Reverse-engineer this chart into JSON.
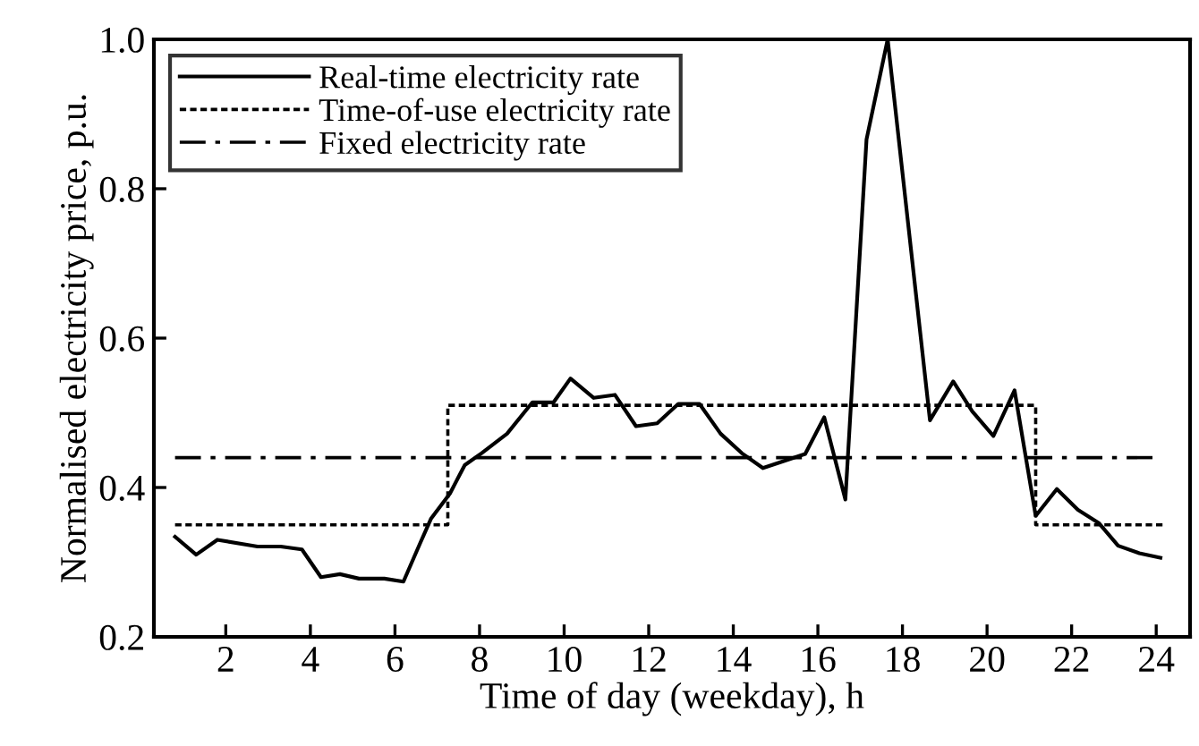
{
  "chart_data": {
    "type": "line",
    "xlabel": "Time of day (weekday), h",
    "ylabel": "Normalised electricity price, p.u.",
    "xlim": [
      0.3,
      24.8
    ],
    "ylim": [
      0.2,
      1.0
    ],
    "xticks": [
      2,
      4,
      6,
      8,
      10,
      12,
      14,
      16,
      18,
      20,
      22,
      24
    ],
    "yticks": [
      0.2,
      0.4,
      0.6,
      0.8,
      {
        "value": 1,
        "label": "1.0"
      }
    ],
    "grid": false,
    "legend": "top left",
    "series": [
      {
        "name": "Real-time electricity rate",
        "color": "#000000",
        "line_style": "solid",
        "x": [
          0.8,
          1.3,
          1.8,
          2.75,
          3.3,
          3.8,
          4.25,
          4.7,
          5.15,
          5.75,
          6.2,
          6.6,
          6.85,
          7.3,
          7.65,
          8.05,
          8.65,
          9.25,
          9.75,
          10.15,
          10.7,
          11.2,
          11.7,
          12.2,
          12.7,
          13.2,
          13.7,
          14.2,
          14.7,
          15.7,
          16.15,
          16.65,
          17.15,
          17.65,
          18.65,
          19.2,
          19.65,
          20.15,
          20.65,
          21.15,
          21.65,
          22.15,
          22.65,
          23.1,
          23.6,
          24.1
        ],
        "values": [
          0.334,
          0.31,
          0.33,
          0.321,
          0.321,
          0.317,
          0.28,
          0.284,
          0.278,
          0.278,
          0.274,
          0.326,
          0.358,
          0.392,
          0.43,
          0.446,
          0.472,
          0.514,
          0.514,
          0.546,
          0.52,
          0.524,
          0.482,
          0.486,
          0.512,
          0.512,
          0.472,
          0.446,
          0.426,
          0.445,
          0.494,
          0.384,
          0.866,
          1.0,
          0.49,
          0.542,
          0.502,
          0.469,
          0.53,
          0.362,
          0.398,
          0.37,
          0.352,
          0.322,
          0.312,
          0.306
        ]
      },
      {
        "name": "Time-of-use electricity rate",
        "color": "#000000",
        "line_style": "dotted",
        "x": [
          0.8,
          7.25,
          7.25,
          21.15,
          21.15,
          24.2
        ],
        "values": [
          0.35,
          0.35,
          0.51,
          0.51,
          0.35,
          0.35
        ]
      },
      {
        "name": "Fixed electricity rate",
        "color": "#000000",
        "line_style": "dashdot",
        "x": [
          0.8,
          24.0
        ],
        "values": [
          0.44,
          0.44
        ]
      }
    ]
  }
}
